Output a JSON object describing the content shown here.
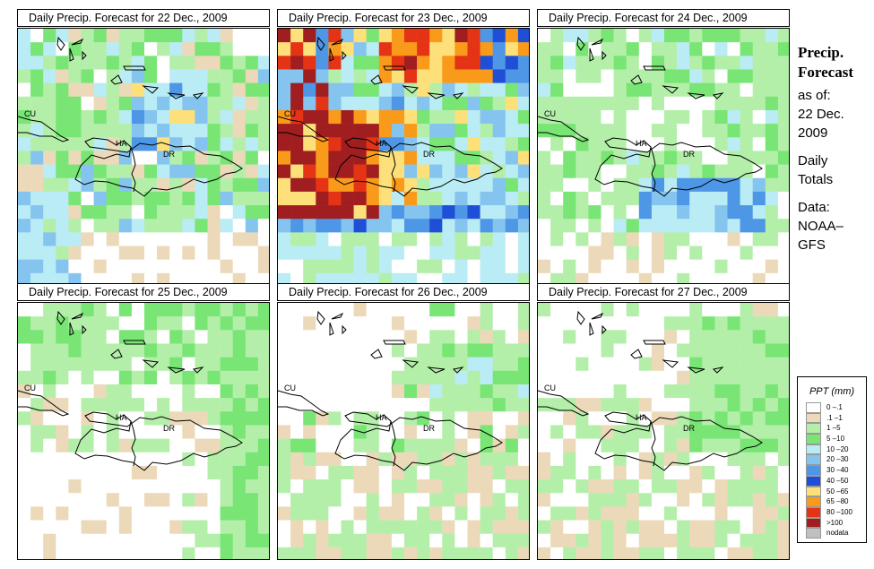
{
  "panels": [
    {
      "title": "Daily Precip. Forecast for  22 Dec., 2009",
      "pattern": "p22"
    },
    {
      "title": "Daily Precip. Forecast for  23 Dec., 2009",
      "pattern": "p23"
    },
    {
      "title": "Daily Precip. Forecast for  24 Dec., 2009",
      "pattern": "p24"
    },
    {
      "title": "Daily Precip. Forecast for  25 Dec., 2009",
      "pattern": "p25"
    },
    {
      "title": "Daily Precip. Forecast for  26 Dec., 2009",
      "pattern": "p26"
    },
    {
      "title": "Daily Precip. Forecast for  27 Dec., 2009",
      "pattern": "p27"
    }
  ],
  "country_labels": {
    "cu": "CU",
    "ha": "HA",
    "dr": "DR"
  },
  "side": {
    "title_line1": "Precip.",
    "title_line2": "Forecast",
    "as_of": "as of:",
    "date_line1": "22 Dec.",
    "date_line2": "2009",
    "daily_line1": "Daily",
    "daily_line2": "Totals",
    "data_line1": "Data:",
    "data_line2": "NOAA–",
    "data_line3": "GFS"
  },
  "legend": {
    "title": "PPT (mm)",
    "items": [
      {
        "label": "0 –.1",
        "color": "#ffffff"
      },
      {
        "label": ".1 –1",
        "color": "#ecd9b9"
      },
      {
        "label": "1 –5",
        "color": "#b4efaa"
      },
      {
        "label": "5 –10",
        "color": "#78e574"
      },
      {
        "label": "10 –20",
        "color": "#b9ecf4"
      },
      {
        "label": "20 –30",
        "color": "#84c4ef"
      },
      {
        "label": "30 –40",
        "color": "#4e96e6"
      },
      {
        "label": "40 –50",
        "color": "#1f4fd6"
      },
      {
        "label": "50 –65",
        "color": "#fde07a"
      },
      {
        "label": "65 –80",
        "color": "#f99a1a"
      },
      {
        "label": "80 –100",
        "color": "#e53415"
      },
      {
        "label": ">100",
        "color": "#a01e20"
      },
      {
        "label": "nodata",
        "color": "#c0c0c0"
      }
    ]
  },
  "grid_rows": [
    [
      "011210111000000000000",
      "12451111111111112000",
      "1111111111111111000",
      "0010111101111100200",
      "1000000101010100210",
      "0000011001101011200",
      "0000000011111000000"
    ],
    [
      "000000000001010011000",
      "11001141111117001010",
      "0010011010110110100",
      "0001011100100101001",
      "0000000012100101001",
      "0000001000000101100",
      "0000000000000000000"
    ]
  ]
}
